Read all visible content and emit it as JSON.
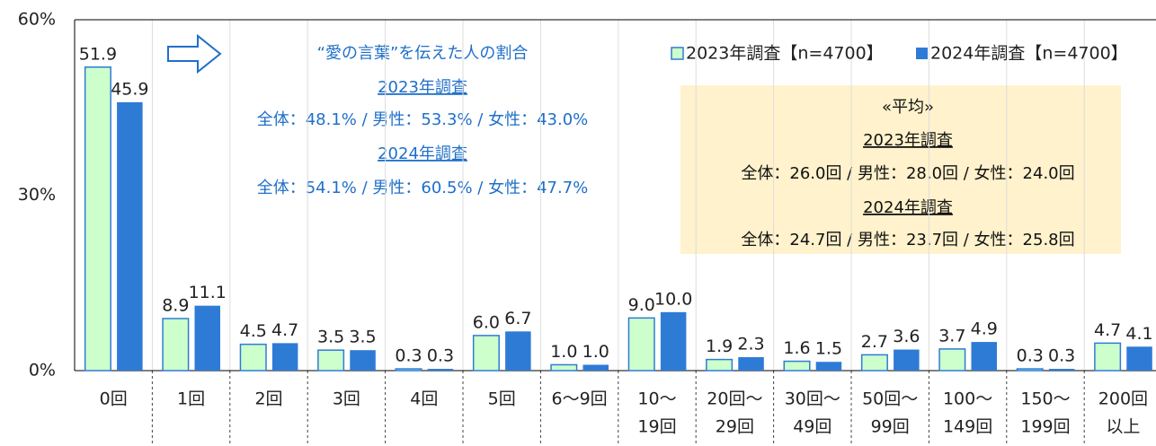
{
  "chart_data": {
    "type": "bar",
    "categories": [
      [
        "0回"
      ],
      [
        "1回"
      ],
      [
        "2回"
      ],
      [
        "3回"
      ],
      [
        "4回"
      ],
      [
        "5回"
      ],
      [
        "6～9回"
      ],
      [
        "10～",
        "19回"
      ],
      [
        "20回～",
        "29回"
      ],
      [
        "30回～",
        "49回"
      ],
      [
        "50回～",
        "99回"
      ],
      [
        "100～",
        "149回"
      ],
      [
        "150～",
        "199回"
      ],
      [
        "200回",
        "以上"
      ]
    ],
    "series": [
      {
        "name": "2023年調査【n=4700】",
        "color": "#ccffcc",
        "stroke": "#2e7bd6",
        "values": [
          51.9,
          8.9,
          4.5,
          3.5,
          0.3,
          6.0,
          1.0,
          9.0,
          1.9,
          1.6,
          2.7,
          3.7,
          0.3,
          4.7
        ],
        "value_labels": [
          "51.9",
          "8.9",
          "4.5",
          "3.5",
          "0.3",
          "6.0",
          "1.0",
          "9.0",
          "1.9",
          "1.6",
          "2.7",
          "3.7",
          "0.3",
          "4.7"
        ]
      },
      {
        "name": "2024年調査【n=4700】",
        "color": "#2e7bd6",
        "values": [
          45.9,
          11.1,
          4.7,
          3.5,
          0.3,
          6.7,
          1.0,
          10.0,
          2.3,
          1.5,
          3.6,
          4.9,
          0.3,
          4.1
        ],
        "value_labels": [
          "45.9",
          "11.1",
          "4.7",
          "3.5",
          "0.3",
          "6.7",
          "1.0",
          "10.0",
          "2.3",
          "1.5",
          "3.6",
          "4.9",
          "0.3",
          "4.1"
        ]
      }
    ],
    "ylim": [
      0,
      60
    ],
    "yticks": [
      {
        "value": 0,
        "label": "0%"
      },
      {
        "value": 30,
        "label": "30%"
      },
      {
        "value": 60,
        "label": "60%"
      }
    ],
    "annotations": {
      "left": [
        "“愛の言葉”を伝えた人の割合",
        "2023年調査",
        "全体：48.1% / 男性：53.3% / 女性：43.0%",
        "2024年調査",
        "全体：54.1% / 男性：60.5% / 女性：47.7%"
      ],
      "right": [
        "«平均»",
        "2023年調査",
        "全体：26.0回 / 男性：28.0回 / 女性：24.0回",
        "2024年調査",
        "全体：24.7回 / 男性：23.7回 / 女性：25.8回"
      ]
    }
  }
}
